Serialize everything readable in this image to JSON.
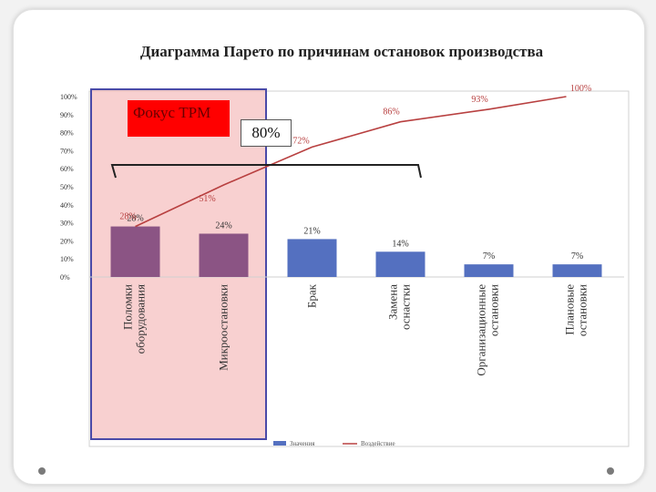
{
  "title": "Диаграмма Парето по причинам остановок производства",
  "focus_label": "Фокус ТРМ",
  "threshold_label": "80%",
  "colors": {
    "focus_bar": "#8B5484",
    "other_bar": "#5470C0",
    "line": "#B84040",
    "highlight": "#F4B0B0",
    "focus_box": "#ff0000"
  },
  "chart_data": {
    "type": "bar",
    "categories": [
      "Поломки оборудования",
      "Микроостановки",
      "Брак",
      "Замена оснастки",
      "Организационные остановки",
      "Плановые остановки"
    ],
    "series": [
      {
        "name": "Значения",
        "values": [
          28,
          24,
          21,
          14,
          7,
          7
        ]
      },
      {
        "name": "Воздействие",
        "type": "line",
        "values": [
          28,
          51,
          72,
          86,
          93,
          100
        ]
      }
    ],
    "value_labels": [
      "28%",
      "24%",
      "21%",
      "14%",
      "7%",
      "7%"
    ],
    "line_labels": [
      "28%",
      "51%",
      "72%",
      "86%",
      "93%",
      "100%"
    ],
    "yticks": [
      "0%",
      "10%",
      "20%",
      "30%",
      "40%",
      "50%",
      "60%",
      "70%",
      "80%",
      "90%",
      "100%"
    ],
    "ylim": [
      0,
      100
    ],
    "grid": false,
    "legend": "bottom"
  }
}
